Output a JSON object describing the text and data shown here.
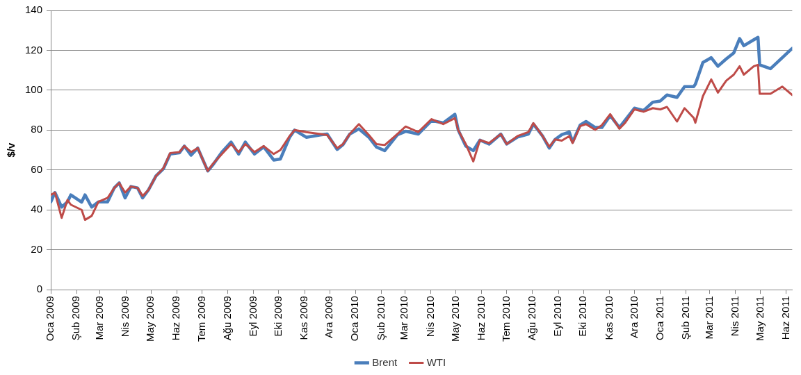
{
  "chart_data": {
    "type": "line",
    "ylabel": "$/v",
    "x": [
      "2009-01-01",
      "2009-01-06",
      "2009-01-14",
      "2009-01-21",
      "2009-01-25",
      "2009-02-07",
      "2009-02-11",
      "2009-02-19",
      "2009-02-27",
      "2009-03-10",
      "2009-03-18",
      "2009-03-24",
      "2009-03-31",
      "2009-04-07",
      "2009-04-15",
      "2009-04-21",
      "2009-04-28",
      "2009-05-07",
      "2009-05-16",
      "2009-05-24",
      "2009-06-04",
      "2009-06-10",
      "2009-06-18",
      "2009-06-26",
      "2009-07-08",
      "2009-07-14",
      "2009-07-25",
      "2009-08-05",
      "2009-08-14",
      "2009-08-22",
      "2009-09-02",
      "2009-09-13",
      "2009-09-25",
      "2009-10-03",
      "2009-10-14",
      "2009-10-20",
      "2009-11-03",
      "2009-11-20",
      "2009-11-28",
      "2009-12-10",
      "2009-12-17",
      "2009-12-25",
      "2010-01-05",
      "2010-01-17",
      "2010-01-26",
      "2010-02-05",
      "2010-02-20",
      "2010-03-02",
      "2010-03-17",
      "2010-04-02",
      "2010-04-16",
      "2010-04-30",
      "2010-05-04",
      "2010-05-13",
      "2010-05-22",
      "2010-05-30",
      "2010-06-10",
      "2010-06-24",
      "2010-07-01",
      "2010-07-14",
      "2010-07-27",
      "2010-08-02",
      "2010-08-13",
      "2010-08-21",
      "2010-08-28",
      "2010-09-05",
      "2010-09-14",
      "2010-09-18",
      "2010-09-27",
      "2010-10-04",
      "2010-10-15",
      "2010-10-23",
      "2010-11-02",
      "2010-11-13",
      "2010-11-20",
      "2010-12-01",
      "2010-12-12",
      "2010-12-23",
      "2011-01-01",
      "2011-01-09",
      "2011-01-21",
      "2011-01-30",
      "2011-02-10",
      "2011-02-12",
      "2011-02-21",
      "2011-03-03",
      "2011-03-11",
      "2011-03-21",
      "2011-03-30",
      "2011-04-06",
      "2011-04-11",
      "2011-04-23",
      "2011-04-28",
      "2011-04-30",
      "2011-05-13",
      "2011-05-27",
      "2011-06-08"
    ],
    "series": [
      {
        "name": "Brent",
        "color": "#4a7ebb",
        "values": [
          44,
          48.7,
          41.4,
          44,
          47.5,
          43.9,
          47.5,
          41.4,
          44,
          44,
          51,
          53.5,
          46,
          51.7,
          51,
          46,
          50,
          57,
          60.7,
          68,
          68.6,
          72,
          67.4,
          71,
          59.5,
          62.5,
          69,
          74,
          68,
          74,
          68,
          71.6,
          65,
          65.5,
          76.4,
          80,
          76.4,
          77.6,
          78,
          70.3,
          72.7,
          78,
          80.6,
          76.4,
          71.5,
          69.7,
          77.6,
          79.4,
          78,
          84.8,
          83.6,
          87.9,
          80,
          72,
          69.7,
          75,
          73,
          78,
          73,
          76.5,
          78,
          83,
          77,
          71,
          75.3,
          77.7,
          79,
          74,
          82.5,
          84.3,
          81.3,
          81.3,
          87.3,
          81.3,
          85,
          91,
          89.8,
          94,
          94.6,
          97.6,
          96.4,
          101.8,
          101.8,
          103,
          113.9,
          116.3,
          112,
          115.7,
          118.7,
          125.9,
          122.3,
          125.3,
          126.5,
          112.7,
          110.8,
          116.3,
          121
        ]
      },
      {
        "name": "WTI",
        "color": "#be4b48",
        "values": [
          47.5,
          48.7,
          36,
          45,
          42.6,
          40,
          35,
          37,
          44,
          46,
          51,
          53.5,
          48.7,
          51.7,
          51,
          47,
          50,
          57,
          61,
          68.5,
          69,
          72,
          69,
          71,
          59.5,
          63,
          68,
          73,
          69,
          73,
          69,
          72,
          68,
          70,
          77,
          80,
          79,
          78,
          77.5,
          71,
          73,
          78,
          83,
          77.5,
          73,
          72.5,
          78,
          81.8,
          79,
          85.5,
          83,
          86,
          80,
          73,
          64.3,
          75,
          73.5,
          78,
          73,
          77,
          79,
          83.5,
          77,
          71.7,
          75.3,
          74.7,
          77,
          73.5,
          82,
          83,
          80.1,
          82.5,
          88,
          80.7,
          83.7,
          90.4,
          89.2,
          91,
          90.4,
          91.6,
          84.3,
          91,
          86.1,
          83.7,
          97,
          105.4,
          98.8,
          104.8,
          107.8,
          112,
          107.8,
          112,
          112.7,
          98.2,
          98.2,
          101.8,
          97.6
        ]
      }
    ],
    "xlim": [
      "2009-01-01",
      "2011-06-08"
    ],
    "xticks": [
      {
        "value": "2009-01-01",
        "label": "Oca 2009"
      },
      {
        "value": "2009-02-01",
        "label": "Şub 2009"
      },
      {
        "value": "2009-03-01",
        "label": "Mar 2009"
      },
      {
        "value": "2009-04-01",
        "label": "Nis 2009"
      },
      {
        "value": "2009-05-01",
        "label": "May 2009"
      },
      {
        "value": "2009-06-01",
        "label": "Haz 2009"
      },
      {
        "value": "2009-07-01",
        "label": "Tem 2009"
      },
      {
        "value": "2009-08-01",
        "label": "Ağu 2009"
      },
      {
        "value": "2009-09-01",
        "label": "Eyl 2009"
      },
      {
        "value": "2009-10-01",
        "label": "Eki 2009"
      },
      {
        "value": "2009-11-01",
        "label": "Kas 2009"
      },
      {
        "value": "2009-12-01",
        "label": "Ara 2009"
      },
      {
        "value": "2010-01-01",
        "label": "Oca 2010"
      },
      {
        "value": "2010-02-01",
        "label": "Şub 2010"
      },
      {
        "value": "2010-03-01",
        "label": "Mar 2010"
      },
      {
        "value": "2010-04-01",
        "label": "Nis 2010"
      },
      {
        "value": "2010-05-01",
        "label": "May 2010"
      },
      {
        "value": "2010-06-01",
        "label": "Haz 2010"
      },
      {
        "value": "2010-07-01",
        "label": "Tem 2010"
      },
      {
        "value": "2010-08-01",
        "label": "Ağu 2010"
      },
      {
        "value": "2010-09-01",
        "label": "Eyl 2010"
      },
      {
        "value": "2010-10-01",
        "label": "Eki 2010"
      },
      {
        "value": "2010-11-01",
        "label": "Kas 2010"
      },
      {
        "value": "2010-12-01",
        "label": "Ara 2010"
      },
      {
        "value": "2011-01-01",
        "label": "Oca 2011"
      },
      {
        "value": "2011-02-01",
        "label": "Şub 2011"
      },
      {
        "value": "2011-03-01",
        "label": "Mar 2011"
      },
      {
        "value": "2011-04-01",
        "label": "Nis 2011"
      },
      {
        "value": "2011-05-01",
        "label": "May 2011"
      },
      {
        "value": "2011-06-01",
        "label": "Haz 2011"
      }
    ],
    "ylim": [
      0,
      140
    ],
    "yticks": [
      0,
      20,
      40,
      60,
      80,
      100,
      120,
      140
    ],
    "grid": "y",
    "legend": "bottom",
    "marker": "none",
    "line_style": "solid"
  }
}
